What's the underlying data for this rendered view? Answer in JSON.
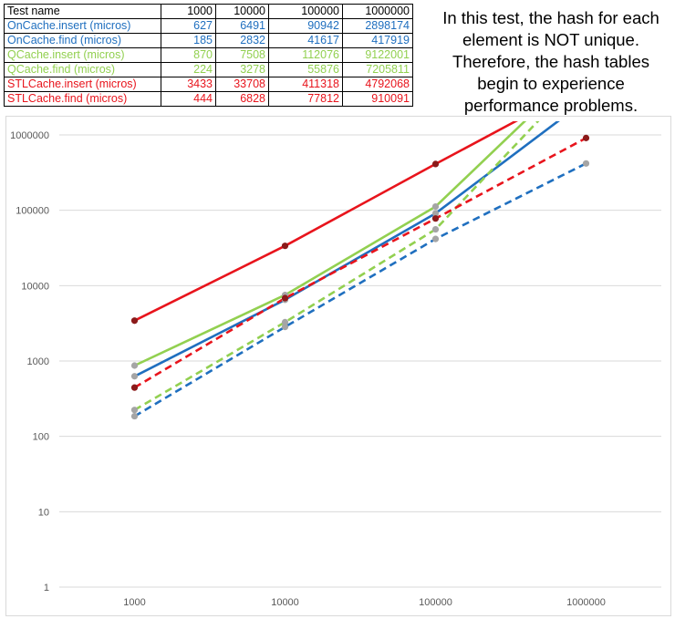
{
  "table": {
    "header": [
      "Test name",
      "1000",
      "10000",
      "100000",
      "1000000"
    ],
    "rows": [
      {
        "name": "OnCache.insert (micros)",
        "values": [
          "627",
          "6491",
          "90942",
          "2898174"
        ],
        "color": "#1F6FBF"
      },
      {
        "name": "OnCache.find (micros)",
        "values": [
          "185",
          "2832",
          "41617",
          "417919"
        ],
        "color": "#1F6FBF"
      },
      {
        "name": "QCache.insert (micros)",
        "values": [
          "870",
          "7508",
          "112076",
          "9122001"
        ],
        "color": "#92D050"
      },
      {
        "name": "QCache.find (micros)",
        "values": [
          "224",
          "3278",
          "55876",
          "7205811"
        ],
        "color": "#92D050"
      },
      {
        "name": "STLCache.insert (micros)",
        "values": [
          "3433",
          "33708",
          "411318",
          "4792068"
        ],
        "color": "#E8141C"
      },
      {
        "name": "STLCache.find (micros)",
        "values": [
          "444",
          "6828",
          "77812",
          "910091"
        ],
        "color": "#E8141C"
      }
    ]
  },
  "note": {
    "lines": [
      "In this test, the hash for each",
      "element is NOT unique.",
      "Therefore, the hash tables",
      "begin to experience",
      "performance problems."
    ]
  },
  "chart_data": {
    "type": "line",
    "title": "",
    "xlabel": "",
    "ylabel": "",
    "x_scale": "log",
    "y_scale": "log",
    "categories": [
      "1000",
      "10000",
      "100000",
      "1000000"
    ],
    "x": [
      1000,
      10000,
      100000,
      1000000
    ],
    "ylim": [
      1,
      1000000
    ],
    "y_ticks": [
      "1",
      "10",
      "100",
      "1000",
      "10000",
      "100000",
      "1000000"
    ],
    "gridlines": true,
    "legend": "none",
    "series": [
      {
        "name": "OnCache.insert (micros)",
        "values": [
          627,
          6491,
          90942,
          2898174
        ],
        "color": "#1F6FBF",
        "dash": "solid",
        "marker": "#A5A5A5"
      },
      {
        "name": "OnCache.find (micros)",
        "values": [
          185,
          2832,
          41617,
          417919
        ],
        "color": "#1F6FBF",
        "dash": "dashed",
        "marker": "#A5A5A5"
      },
      {
        "name": "QCache.insert (micros)",
        "values": [
          870,
          7508,
          112076,
          9122001
        ],
        "color": "#92D050",
        "dash": "solid",
        "marker": "#A5A5A5"
      },
      {
        "name": "QCache.find (micros)",
        "values": [
          224,
          3278,
          55876,
          7205811
        ],
        "color": "#92D050",
        "dash": "dashed",
        "marker": "#A5A5A5"
      },
      {
        "name": "STLCache.insert (micros)",
        "values": [
          3433,
          33708,
          411318,
          4792068
        ],
        "color": "#E8141C",
        "dash": "solid",
        "marker": "#8B1A1A"
      },
      {
        "name": "STLCache.find (micros)",
        "values": [
          444,
          6828,
          77812,
          910091
        ],
        "color": "#E8141C",
        "dash": "dashed",
        "marker": "#8B1A1A"
      }
    ]
  }
}
